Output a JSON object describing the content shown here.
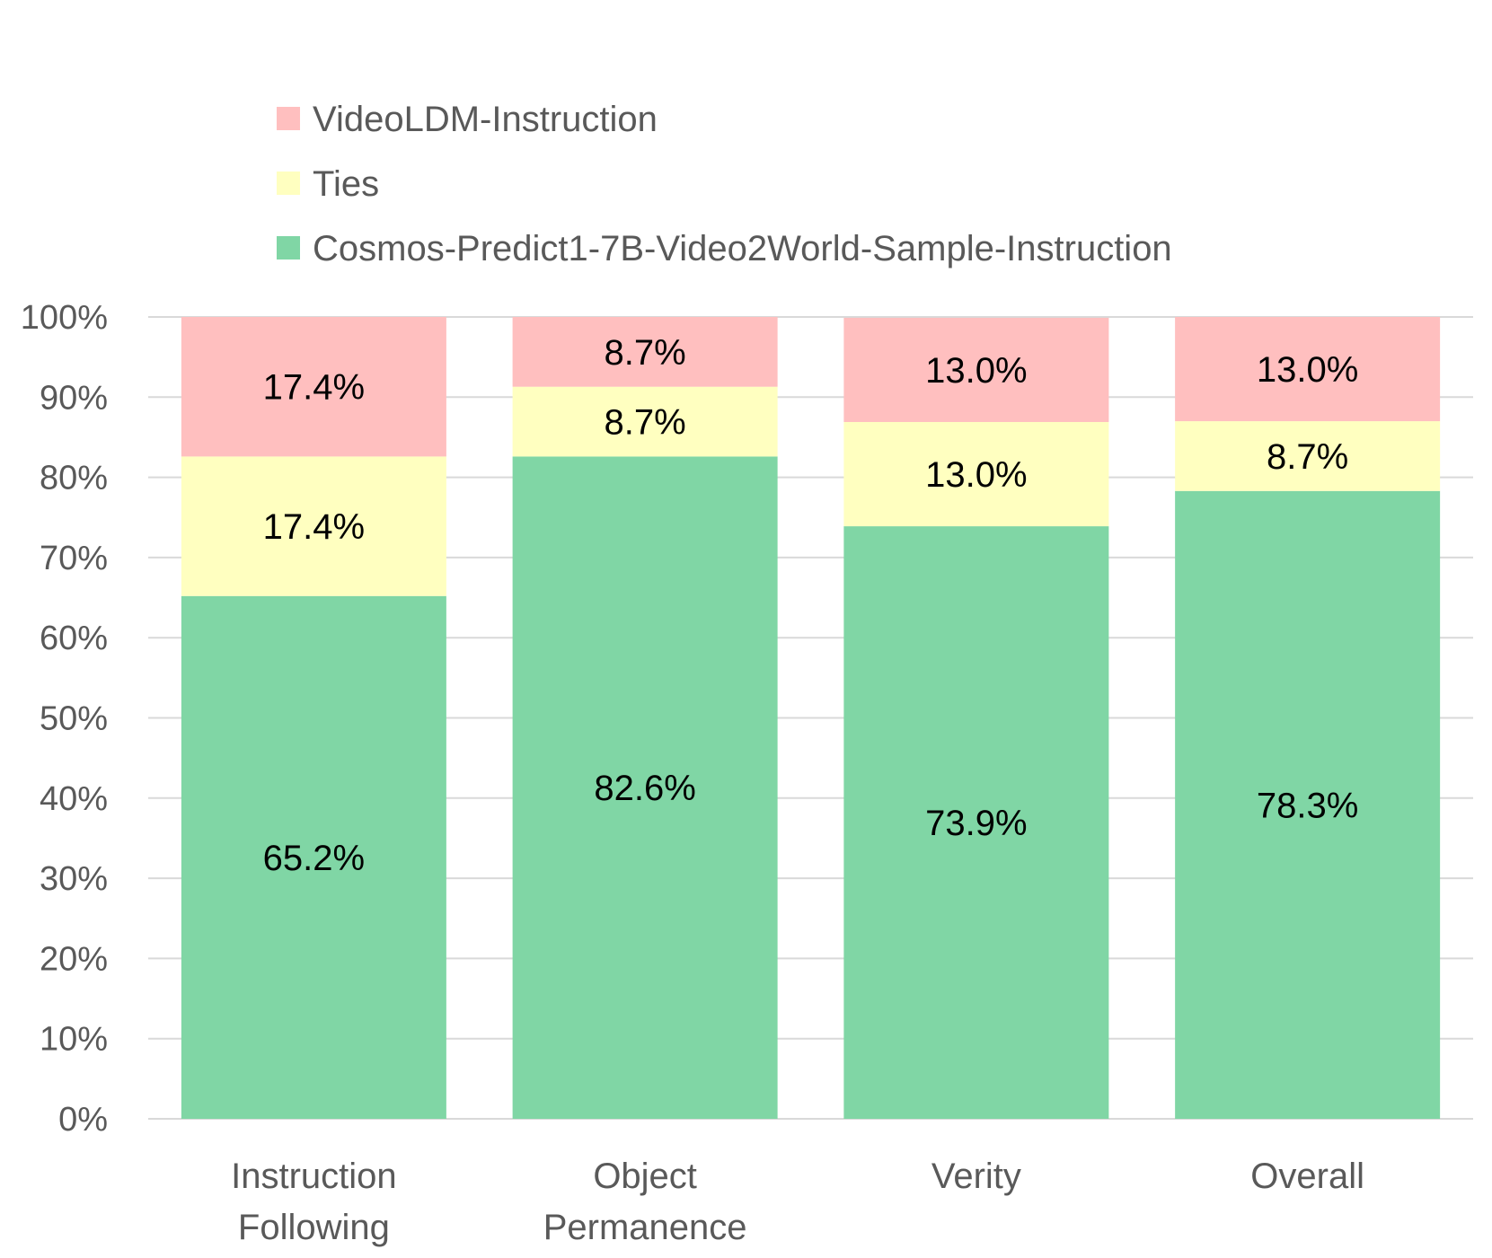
{
  "chart_data": {
    "type": "bar",
    "stacked": true,
    "percent_stacked": true,
    "categories": [
      "Instruction Following",
      "Object Permanence",
      "Verity",
      "Overall"
    ],
    "category_label_lines": [
      [
        "Instruction",
        "Following"
      ],
      [
        "Object",
        "Permanence"
      ],
      [
        "Verity"
      ],
      [
        "Overall"
      ]
    ],
    "series": [
      {
        "name": "Cosmos-Predict1-7B-Video2World-Sample-Instruction",
        "values": [
          65.2,
          82.6,
          73.9,
          78.3
        ],
        "labels": [
          "65.2%",
          "82.6%",
          "73.9%",
          "78.3%"
        ],
        "color": "#80d6a5"
      },
      {
        "name": "Ties",
        "values": [
          17.4,
          8.7,
          13.0,
          8.7
        ],
        "labels": [
          "17.4%",
          "8.7%",
          "13.0%",
          "8.7%"
        ],
        "color": "#ffffc0"
      },
      {
        "name": "VideoLDM-Instruction",
        "values": [
          17.4,
          8.7,
          13.0,
          13.0
        ],
        "labels": [
          "17.4%",
          "8.7%",
          "13.0%",
          "13.0%"
        ],
        "color": "#ffbfbf"
      }
    ],
    "legend_order": [
      "VideoLDM-Instruction",
      "Ties",
      "Cosmos-Predict1-7B-Video2World-Sample-Instruction"
    ],
    "legend_position": "top",
    "yticks": [
      "0%",
      "10%",
      "20%",
      "30%",
      "40%",
      "50%",
      "60%",
      "70%",
      "80%",
      "90%",
      "100%"
    ],
    "ylim": [
      0,
      100
    ],
    "grid": true,
    "title": "",
    "xlabel": "",
    "ylabel": ""
  }
}
